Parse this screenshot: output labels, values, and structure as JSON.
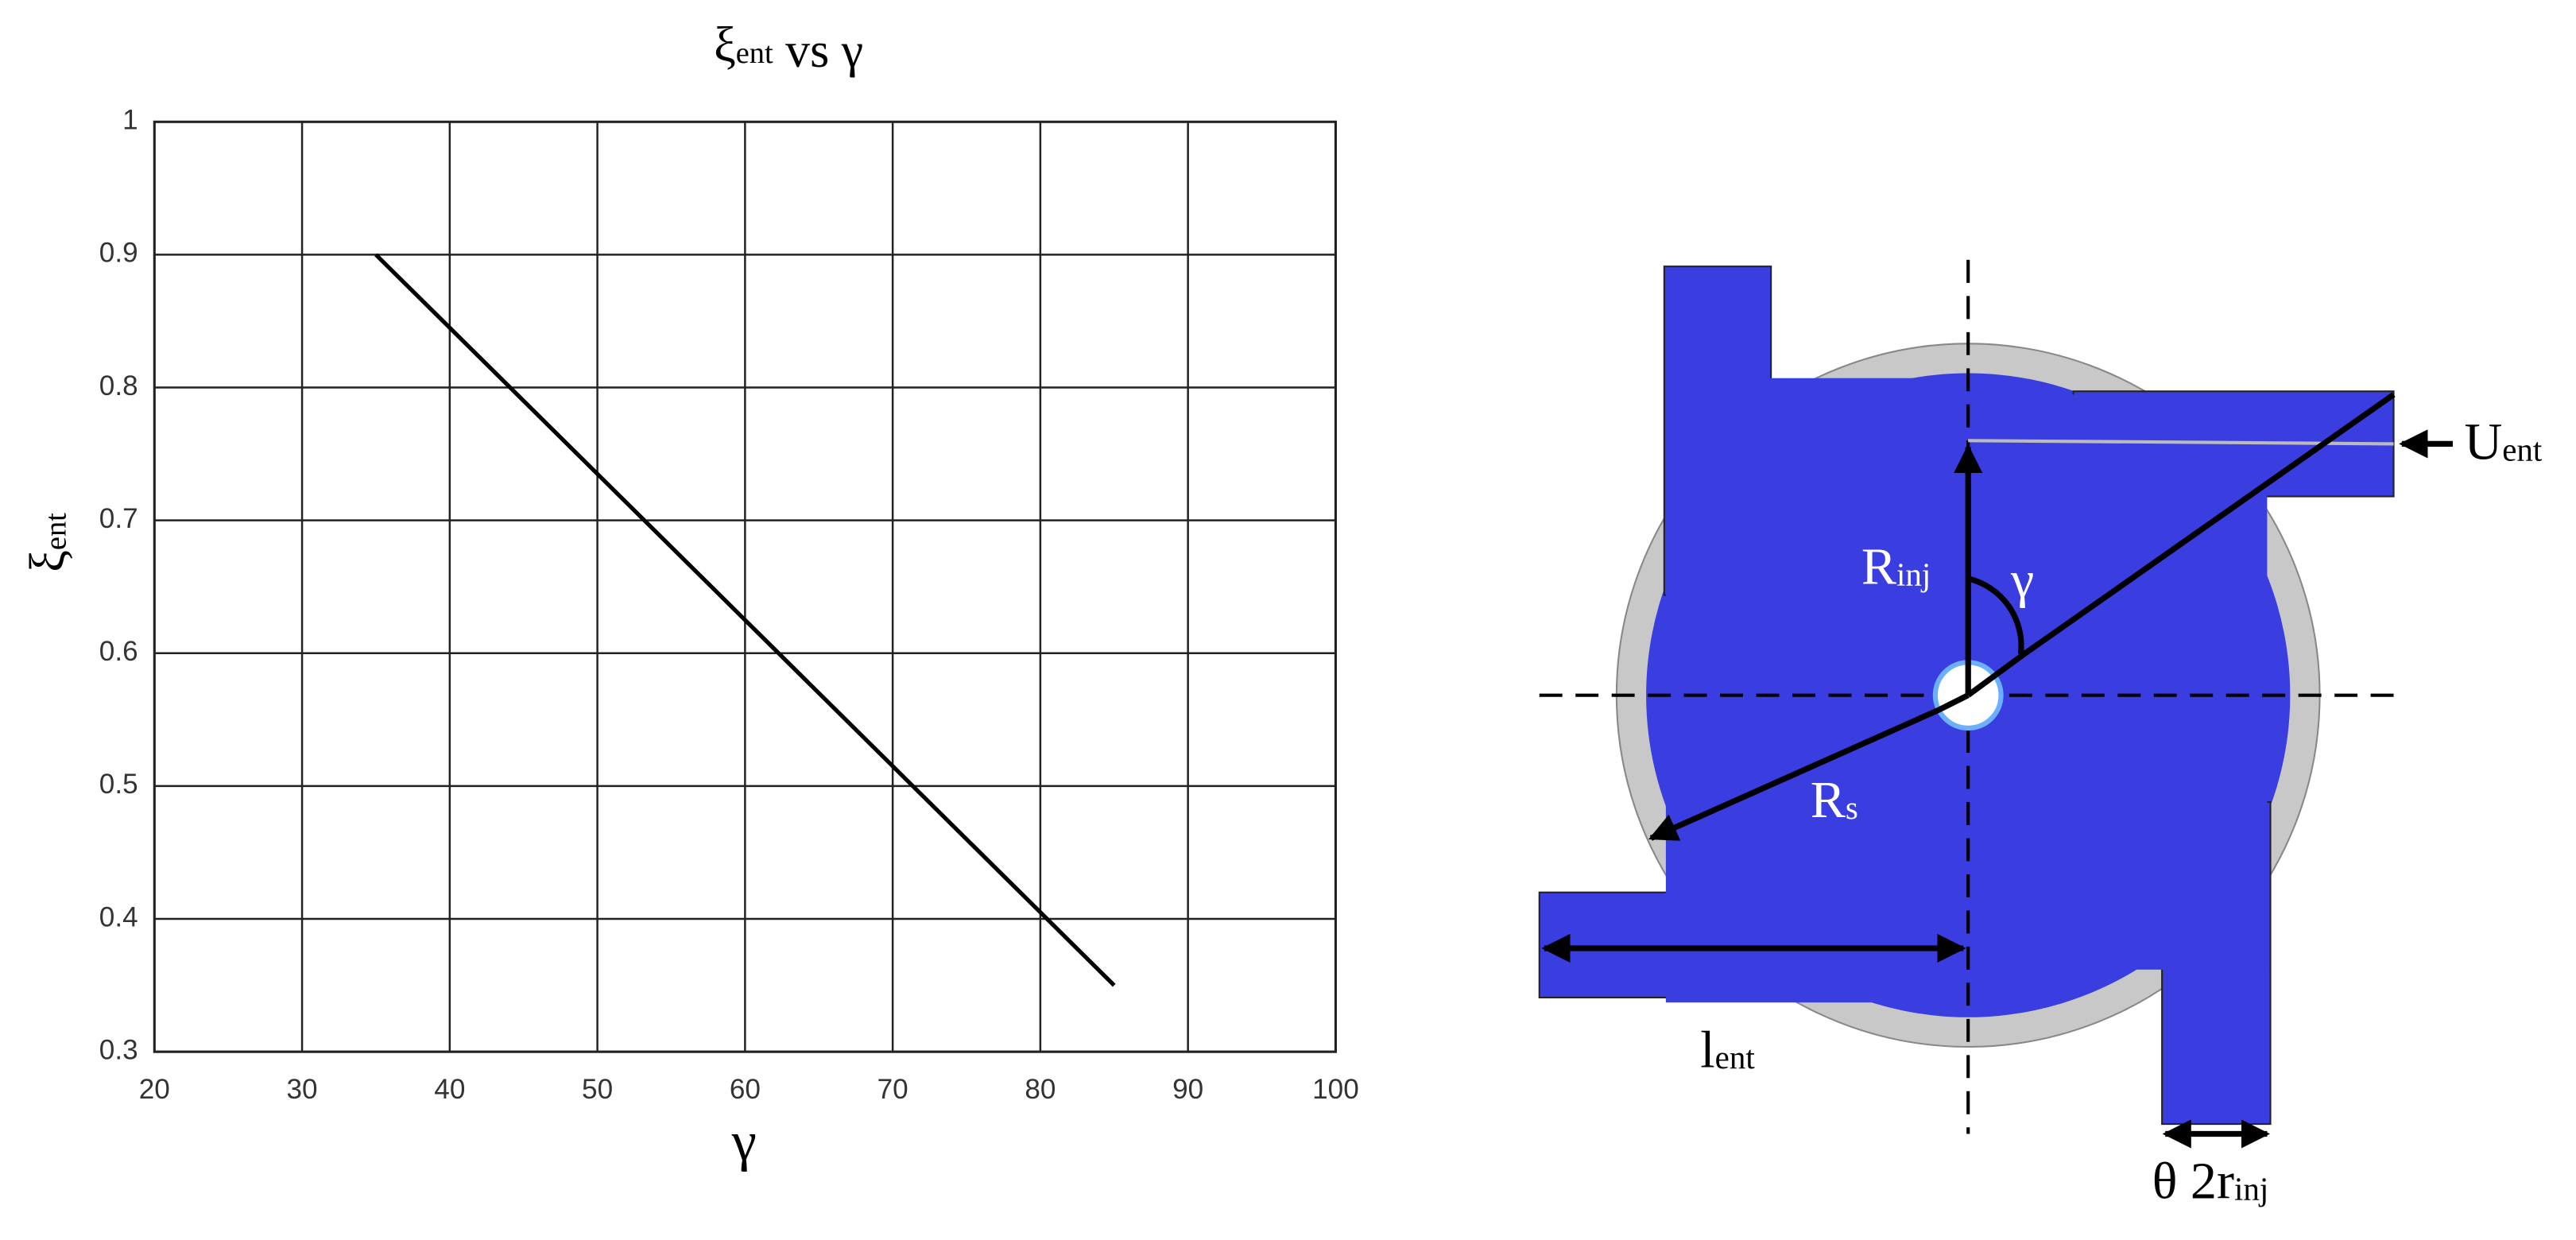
{
  "chart_data": {
    "type": "line",
    "title": [
      "ξ",
      "ent",
      " vs γ"
    ],
    "xlabel": "γ",
    "ylabel": [
      "ξ",
      "ent"
    ],
    "x": [
      35,
      85
    ],
    "series": [
      {
        "color": "#000000",
        "values": [
          0.9,
          0.35
        ]
      }
    ],
    "xlim": [
      20,
      100
    ],
    "xticks": [
      20,
      30,
      40,
      50,
      60,
      70,
      80,
      90,
      100
    ],
    "ylim": [
      0.3,
      1
    ],
    "yticks": [
      0.3,
      0.4,
      0.5,
      0.6,
      0.7,
      0.8,
      0.9,
      1
    ],
    "grid": true
  },
  "diagram": {
    "labels": [
      [
        "U",
        "ent"
      ],
      [
        "R",
        "inj"
      ],
      [
        "γ",
        ""
      ],
      [
        "R",
        "s"
      ],
      [
        "l",
        "ent"
      ],
      [
        "θ 2r",
        "inj"
      ]
    ]
  }
}
